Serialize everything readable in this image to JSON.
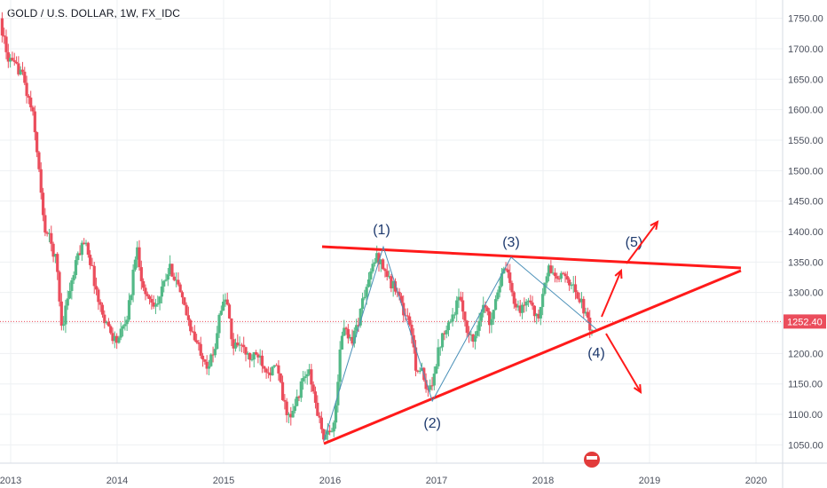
{
  "chart_data": {
    "type": "candlestick",
    "title": "GOLD / U.S. DOLLAR, 1W, FX_IDC",
    "x_axis": {
      "tick_labels": [
        "2013",
        "2014",
        "2015",
        "2016",
        "2017",
        "2018",
        "2019",
        "2020"
      ],
      "range": [
        2012.9,
        2020.25
      ]
    },
    "y_axis": {
      "position": "right",
      "tick_labels": [
        "1750.00",
        "1700.00",
        "1650.00",
        "1600.00",
        "1550.00",
        "1500.00",
        "1450.00",
        "1400.00",
        "1350.00",
        "1300.00",
        "1250.00",
        "1200.00",
        "1150.00",
        "1100.00",
        "1050.00"
      ],
      "range": [
        1020,
        1780
      ]
    },
    "grid": true,
    "colors": {
      "up": "#53b987",
      "down": "#eb4d5c",
      "trend_lines": "#ff1a1a",
      "wave": "#4a90b8",
      "label_text": "#1e3a6e",
      "price_tag": "#eb4d5c"
    },
    "current_price": {
      "value": 1252.4,
      "label": "1252.40"
    },
    "series": [
      {
        "kind": "price_path",
        "x": [
          2012.92,
          2012.98,
          2013.05,
          2013.12,
          2013.18,
          2013.22,
          2013.27,
          2013.33,
          2013.38,
          2013.45,
          2013.5,
          2013.55,
          2013.6,
          2013.65,
          2013.72,
          2013.78,
          2013.85,
          2013.92,
          2013.97,
          2014.02,
          2014.1,
          2014.15,
          2014.2,
          2014.27,
          2014.33,
          2014.4,
          2014.45,
          2014.52,
          2014.58,
          2014.62,
          2014.68,
          2014.75,
          2014.82,
          2014.87,
          2014.93,
          2014.98,
          2015.05,
          2015.1,
          2015.17,
          2015.22,
          2015.28,
          2015.35,
          2015.4,
          2015.47,
          2015.52,
          2015.58,
          2015.65,
          2015.7,
          2015.77,
          2015.82,
          2015.88,
          2015.93,
          2015.97,
          2016.02,
          2016.08,
          2016.12,
          2016.17,
          2016.22,
          2016.28,
          2016.33,
          2016.4,
          2016.45,
          2016.5,
          2016.55,
          2016.6,
          2016.65,
          2016.7,
          2016.77,
          2016.82,
          2016.88,
          2016.93,
          2016.97,
          2017.02,
          2017.07,
          2017.12,
          2017.17,
          2017.22,
          2017.27,
          2017.32,
          2017.37,
          2017.42,
          2017.47,
          2017.52,
          2017.57,
          2017.62,
          2017.67,
          2017.72,
          2017.77,
          2017.82,
          2017.87,
          2017.92,
          2017.97,
          2018.02,
          2018.07,
          2018.12,
          2018.17,
          2018.22,
          2018.27,
          2018.32,
          2018.37,
          2018.42,
          2018.47
        ],
        "y": [
          1750,
          1690,
          1670,
          1665,
          1620,
          1600,
          1530,
          1410,
          1390,
          1350,
          1240,
          1290,
          1320,
          1360,
          1390,
          1340,
          1280,
          1250,
          1230,
          1220,
          1250,
          1300,
          1380,
          1300,
          1290,
          1280,
          1310,
          1340,
          1320,
          1290,
          1260,
          1220,
          1200,
          1180,
          1200,
          1270,
          1290,
          1210,
          1220,
          1200,
          1190,
          1200,
          1180,
          1170,
          1180,
          1120,
          1090,
          1120,
          1160,
          1170,
          1120,
          1080,
          1060,
          1070,
          1110,
          1230,
          1240,
          1220,
          1250,
          1290,
          1330,
          1360,
          1350,
          1330,
          1310,
          1310,
          1270,
          1250,
          1180,
          1170,
          1130,
          1150,
          1190,
          1230,
          1250,
          1260,
          1290,
          1270,
          1230,
          1220,
          1260,
          1280,
          1250,
          1290,
          1320,
          1340,
          1300,
          1280,
          1270,
          1290,
          1280,
          1250,
          1300,
          1340,
          1330,
          1320,
          1330,
          1320,
          1300,
          1290,
          1260,
          1240
        ]
      }
    ],
    "annotations": [
      {
        "kind": "wave_point",
        "label": "(1)",
        "x": 2016.5,
        "y": 1375
      },
      {
        "kind": "wave_point",
        "label": "(2)",
        "x": 2016.96,
        "y": 1122
      },
      {
        "kind": "wave_point",
        "label": "(3)",
        "x": 2017.7,
        "y": 1358
      },
      {
        "kind": "wave_point",
        "label": "(4)",
        "x": 2018.5,
        "y": 1240
      },
      {
        "kind": "wave_point",
        "label": "(5)",
        "x": 2018.82,
        "y": 1355
      }
    ]
  }
}
